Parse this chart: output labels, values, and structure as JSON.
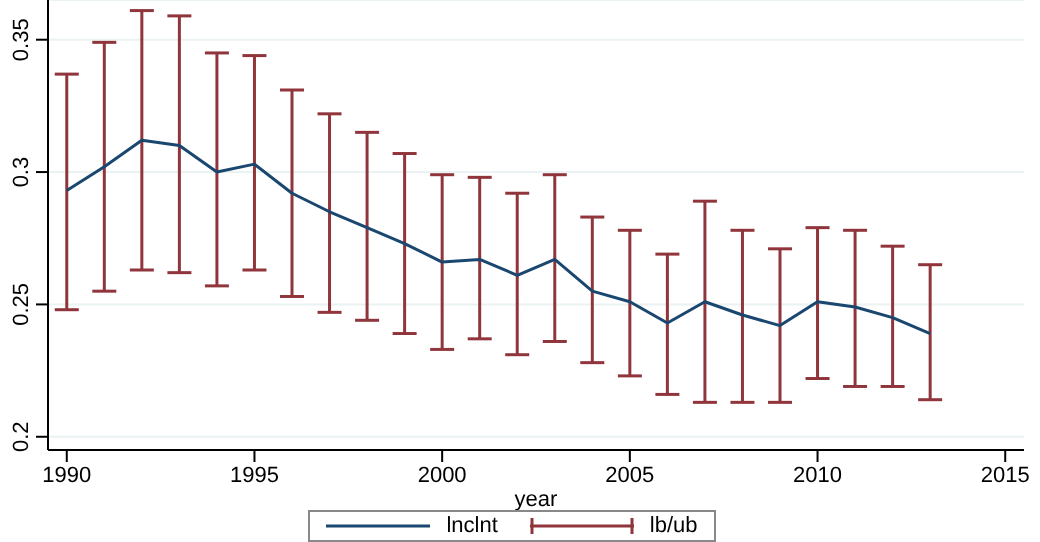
{
  "chart_data": {
    "type": "line",
    "xlabel": "year",
    "annotations": [
      "lb/ub"
    ],
    "x": [
      1990,
      1991,
      1992,
      1993,
      1994,
      1995,
      1996,
      1997,
      1998,
      1999,
      2000,
      2001,
      2002,
      2003,
      2004,
      2005,
      2006,
      2007,
      2008,
      2009,
      2010,
      2011,
      2012,
      2013
    ],
    "series": [
      {
        "name": "lnclnt",
        "color": "#1a476f",
        "values": [
          0.293,
          0.302,
          0.312,
          0.31,
          0.3,
          0.303,
          0.292,
          0.285,
          0.279,
          0.273,
          0.266,
          0.267,
          0.261,
          0.267,
          0.255,
          0.251,
          0.243,
          0.251,
          0.246,
          0.242,
          0.251,
          0.249,
          0.245,
          0.239
        ],
        "errors": [
          [
            0.248,
            0.337
          ],
          [
            0.255,
            0.349
          ],
          [
            0.263,
            0.361
          ],
          [
            0.262,
            0.359
          ],
          [
            0.257,
            0.345
          ],
          [
            0.263,
            0.344
          ],
          [
            0.253,
            0.331
          ],
          [
            0.247,
            0.322
          ],
          [
            0.244,
            0.315
          ],
          [
            0.239,
            0.307
          ],
          [
            0.233,
            0.299
          ],
          [
            0.237,
            0.298
          ],
          [
            0.231,
            0.292
          ],
          [
            0.236,
            0.299
          ],
          [
            0.228,
            0.283
          ],
          [
            0.223,
            0.278
          ],
          [
            0.216,
            0.269
          ],
          [
            0.213,
            0.289
          ],
          [
            0.213,
            0.278
          ],
          [
            0.213,
            0.271
          ],
          [
            0.222,
            0.279
          ],
          [
            0.219,
            0.278
          ],
          [
            0.219,
            0.272
          ],
          [
            0.214,
            0.265
          ]
        ]
      }
    ],
    "xlim": [
      1989.5,
      2015.5
    ],
    "xticks": [
      1990,
      1995,
      2000,
      2005,
      2010,
      2015
    ],
    "ylim": [
      0.195,
      0.365
    ],
    "yticks": [
      0.2,
      0.25,
      0.3,
      0.35
    ],
    "grid": "y",
    "legend": "bottom",
    "marker": "none",
    "line_style": "solid"
  }
}
